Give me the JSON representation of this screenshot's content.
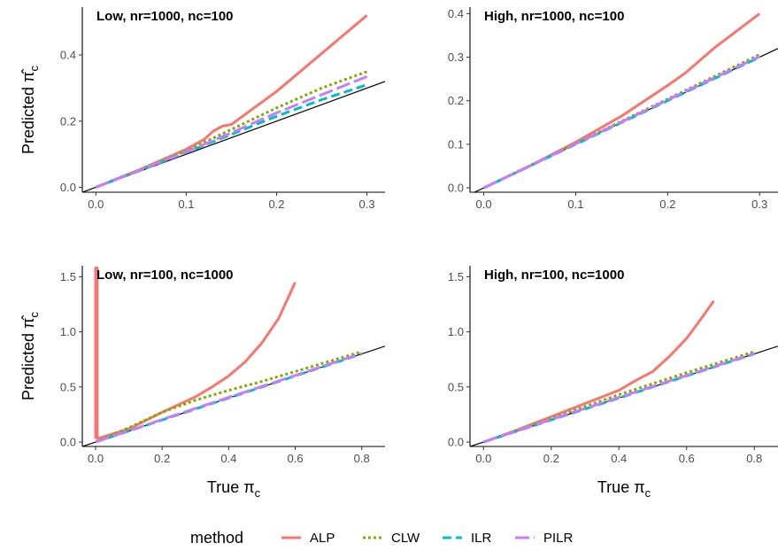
{
  "colors": {
    "ALP": "#f8766d",
    "CLW": "#7cae00",
    "ILR": "#00bfc4",
    "PILR": "#c77cff",
    "reference": "#000000"
  },
  "legend": {
    "title": "method",
    "placement": "bottom",
    "items": [
      {
        "key": "ALP",
        "label": "ALP",
        "dash": "solid"
      },
      {
        "key": "CLW",
        "label": "CLW",
        "dash": "dotted"
      },
      {
        "key": "ILR",
        "label": "ILR",
        "dash": "dashed"
      },
      {
        "key": "PILR",
        "label": "PILR",
        "dash": "longdash"
      }
    ]
  },
  "axis_titles": {
    "y_prefix": "Predicted ",
    "y_symbol": "π̂",
    "y_sub": "c",
    "x_prefix": "True ",
    "x_symbol": "π",
    "x_sub": "c"
  },
  "chart_data": [
    {
      "type": "line",
      "title": "Low, nr=1000, nc=100",
      "xlim": [
        -0.015,
        0.32
      ],
      "ylim": [
        -0.015,
        0.545
      ],
      "x_ticks": [
        0.0,
        0.1,
        0.2,
        0.3
      ],
      "x_tick_labels": [
        "0.0",
        "0.1",
        "0.2",
        "0.3"
      ],
      "y_ticks": [
        0.0,
        0.2,
        0.4
      ],
      "y_tick_labels": [
        "0.0",
        "0.2",
        "0.4"
      ],
      "reference_line": "y = x",
      "series": [
        {
          "name": "ALP",
          "x": [
            0,
            0.05,
            0.1,
            0.12,
            0.13,
            0.14,
            0.15,
            0.2,
            0.25,
            0.3
          ],
          "y": [
            0,
            0.055,
            0.115,
            0.145,
            0.17,
            0.185,
            0.19,
            0.29,
            0.405,
            0.52
          ]
        },
        {
          "name": "CLW",
          "x": [
            0,
            0.05,
            0.1,
            0.15,
            0.2,
            0.25,
            0.3
          ],
          "y": [
            0,
            0.055,
            0.11,
            0.175,
            0.24,
            0.3,
            0.35
          ]
        },
        {
          "name": "ILR",
          "x": [
            0,
            0.05,
            0.1,
            0.15,
            0.2,
            0.25,
            0.3
          ],
          "y": [
            0,
            0.052,
            0.105,
            0.16,
            0.215,
            0.265,
            0.31
          ]
        },
        {
          "name": "PILR",
          "x": [
            0,
            0.05,
            0.1,
            0.15,
            0.2,
            0.25,
            0.3
          ],
          "y": [
            0,
            0.053,
            0.107,
            0.165,
            0.225,
            0.28,
            0.335
          ]
        }
      ]
    },
    {
      "type": "line",
      "title": "High, nr=1000, nc=100",
      "xlim": [
        -0.015,
        0.32
      ],
      "ylim": [
        -0.01,
        0.415
      ],
      "x_ticks": [
        0.0,
        0.1,
        0.2,
        0.3
      ],
      "x_tick_labels": [
        "0.0",
        "0.1",
        "0.2",
        "0.3"
      ],
      "y_ticks": [
        0.0,
        0.1,
        0.2,
        0.3,
        0.4
      ],
      "y_tick_labels": [
        "0.0",
        "0.1",
        "0.2",
        "0.3",
        "0.4"
      ],
      "reference_line": "y = x",
      "series": [
        {
          "name": "ALP",
          "x": [
            0,
            0.05,
            0.1,
            0.15,
            0.2,
            0.22,
            0.25,
            0.3
          ],
          "y": [
            0,
            0.05,
            0.105,
            0.165,
            0.235,
            0.265,
            0.32,
            0.4
          ]
        },
        {
          "name": "CLW",
          "x": [
            0,
            0.1,
            0.2,
            0.3
          ],
          "y": [
            0,
            0.102,
            0.204,
            0.306
          ]
        },
        {
          "name": "ILR",
          "x": [
            0,
            0.1,
            0.2,
            0.3
          ],
          "y": [
            0,
            0.1,
            0.2,
            0.3
          ]
        },
        {
          "name": "PILR",
          "x": [
            0,
            0.1,
            0.2,
            0.3
          ],
          "y": [
            0,
            0.101,
            0.202,
            0.302
          ]
        }
      ]
    },
    {
      "type": "line",
      "title": "Low, nr=100, nc=1000",
      "xlim": [
        -0.04,
        0.87
      ],
      "ylim": [
        -0.04,
        1.6
      ],
      "x_ticks": [
        0.0,
        0.2,
        0.4,
        0.6,
        0.8
      ],
      "x_tick_labels": [
        "0.0",
        "0.2",
        "0.4",
        "0.6",
        "0.8"
      ],
      "y_ticks": [
        0.0,
        0.5,
        1.0,
        1.5
      ],
      "y_tick_labels": [
        "0.0",
        "0.5",
        "1.0",
        "1.5"
      ],
      "reference_line": "y = x",
      "series": [
        {
          "name": "ALP",
          "x": [
            0,
            0,
            0.005,
            0.005,
            0.1,
            0.2,
            0.3,
            0.35,
            0.4,
            0.45,
            0.5,
            0.55,
            0.6
          ],
          "y": [
            0.03,
            1.58,
            1.58,
            0.03,
            0.12,
            0.27,
            0.41,
            0.5,
            0.6,
            0.73,
            0.9,
            1.12,
            1.45
          ]
        },
        {
          "name": "CLW",
          "x": [
            0,
            0.1,
            0.2,
            0.3,
            0.4,
            0.5,
            0.6,
            0.7,
            0.8
          ],
          "y": [
            0,
            0.13,
            0.27,
            0.38,
            0.47,
            0.55,
            0.64,
            0.73,
            0.82
          ]
        },
        {
          "name": "ILR",
          "x": [
            0,
            0.2,
            0.4,
            0.6,
            0.8
          ],
          "y": [
            0,
            0.2,
            0.4,
            0.6,
            0.8
          ]
        },
        {
          "name": "PILR",
          "x": [
            0,
            0.2,
            0.4,
            0.6,
            0.8
          ],
          "y": [
            0,
            0.205,
            0.405,
            0.605,
            0.805
          ]
        }
      ]
    },
    {
      "type": "line",
      "title": "High, nr=100, nc=1000",
      "xlim": [
        -0.04,
        0.87
      ],
      "ylim": [
        -0.04,
        1.6
      ],
      "x_ticks": [
        0.0,
        0.2,
        0.4,
        0.6,
        0.8
      ],
      "x_tick_labels": [
        "0.0",
        "0.2",
        "0.4",
        "0.6",
        "0.8"
      ],
      "y_ticks": [
        0.0,
        0.5,
        1.0,
        1.5
      ],
      "y_tick_labels": [
        "0.0",
        "0.5",
        "1.0",
        "1.5"
      ],
      "reference_line": "y = x",
      "series": [
        {
          "name": "ALP",
          "x": [
            0,
            0.1,
            0.2,
            0.3,
            0.4,
            0.45,
            0.5,
            0.55,
            0.6,
            0.65,
            0.68
          ],
          "y": [
            0,
            0.11,
            0.23,
            0.35,
            0.47,
            0.56,
            0.64,
            0.78,
            0.94,
            1.15,
            1.28
          ]
        },
        {
          "name": "CLW",
          "x": [
            0,
            0.2,
            0.4,
            0.6,
            0.8
          ],
          "y": [
            0,
            0.215,
            0.43,
            0.63,
            0.82
          ]
        },
        {
          "name": "ILR",
          "x": [
            0,
            0.2,
            0.4,
            0.6,
            0.8
          ],
          "y": [
            0,
            0.2,
            0.4,
            0.6,
            0.8
          ]
        },
        {
          "name": "PILR",
          "x": [
            0,
            0.2,
            0.4,
            0.6,
            0.8
          ],
          "y": [
            0,
            0.205,
            0.405,
            0.605,
            0.805
          ]
        }
      ]
    }
  ]
}
